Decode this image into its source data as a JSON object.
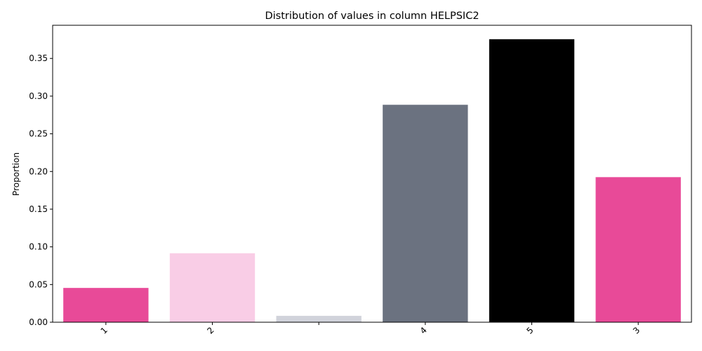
{
  "chart_data": {
    "type": "bar",
    "title": "Distribution of values in column HELPSIC2",
    "xlabel": "",
    "ylabel": "Proportion",
    "categories": [
      "1",
      "2",
      "",
      "4",
      "5",
      "3"
    ],
    "values": [
      0.0455,
      0.0915,
      0.0085,
      0.2885,
      0.3755,
      0.1925
    ],
    "colors": [
      "#e84a98",
      "#f9cde6",
      "#d1d3db",
      "#6b7280",
      "#000000",
      "#e84a98"
    ],
    "ylim": [
      0,
      0.394
    ],
    "yticks": [
      0.0,
      0.05,
      0.1,
      0.15,
      0.2,
      0.25,
      0.3,
      0.35
    ],
    "ytick_labels": [
      "0.00",
      "0.05",
      "0.10",
      "0.15",
      "0.20",
      "0.25",
      "0.30",
      "0.35"
    ],
    "grid": false,
    "legend": "none"
  }
}
